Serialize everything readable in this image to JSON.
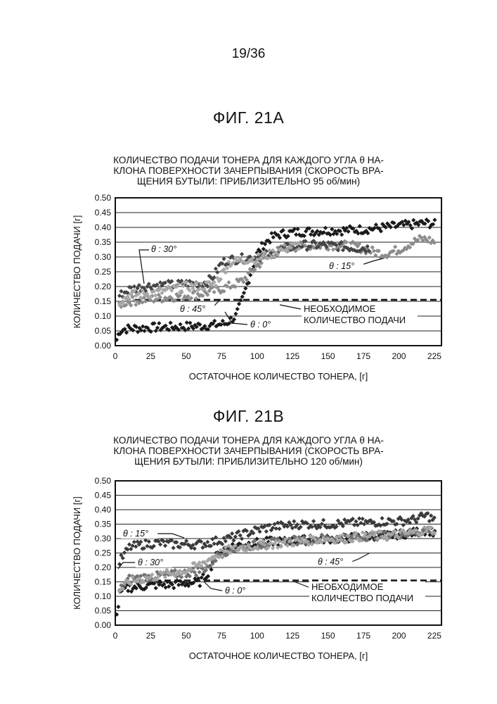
{
  "page": {
    "number": "19/36"
  },
  "figures": [
    {
      "label": "ФИГ. 21А",
      "title_lines": [
        "КОЛИЧЕСТВО ПОДАЧИ ТОНЕРА ДЛЯ КАЖДОГО УГЛА θ НА-",
        "КЛОНА ПОВЕРХНОСТИ ЗАЧЕРПЫВАНИЯ (СКОРОСТЬ ВРА-",
        "ЩЕНИЯ БУТЫЛИ: ПРИБЛИЗИТЕЛЬНО 95 об/мин)"
      ],
      "annotations": [
        "θ : 30°",
        "θ : 45°",
        "θ : 0°",
        "θ : 15°",
        "НЕОБХОДИМОЕ",
        "КОЛИЧЕСТВО ПОДАЧИ"
      ]
    },
    {
      "label": "ФИГ. 21В",
      "title_lines": [
        "КОЛИЧЕСТВО ПОДАЧИ ТОНЕРА ДЛЯ КАЖДОГО УГЛА θ НА-",
        "КЛОНА ПОВЕРХНОСТИ ЗАЧЕРПЫВАНИЯ (СКОРОСТЬ ВРА-",
        "ЩЕНИЯ БУТЫЛИ: ПРИБЛИЗИТЕЛЬНО 120 об/мин)"
      ],
      "annotations": [
        "θ : 15°",
        "θ : 30°",
        "θ : 0°",
        "θ : 45°",
        "НЕОБХОДИМОЕ",
        "КОЛИЧЕСТВО ПОДАЧИ"
      ]
    }
  ],
  "chart_data": [
    {
      "type": "scatter",
      "title": "КОЛИЧЕСТВО ПОДАЧИ ТОНЕРА ДЛЯ КАЖДОГО УГЛА θ НАКЛОНА ПОВЕРХНОСТИ ЗАЧЕРПЫВАНИЯ (СКОРОСТЬ ВРАЩЕНИЯ БУТЫЛИ: ПРИБЛИЗИТЕЛЬНО 95 об/мин)",
      "xlabel": "ОСТАТОЧНОЕ КОЛИЧЕСТВО ТОНЕРА, [г]",
      "ylabel": "КОЛИЧЕСТВО ПОДАЧИ [г]",
      "xlim": [
        0,
        230
      ],
      "ylim": [
        0,
        0.5
      ],
      "xticks": [
        "0",
        "25",
        "50",
        "75",
        "100",
        "125",
        "150",
        "175",
        "200",
        "225"
      ],
      "yticks": [
        "0.00",
        "0.05",
        "0.10",
        "0.15",
        "0.20",
        "0.25",
        "0.30",
        "0.35",
        "0.40",
        "0.45",
        "0.50"
      ],
      "grid": true,
      "required_line": {
        "label": "НЕОБХОДИМОЕ КОЛИЧЕСТВО ПОДАЧИ",
        "y": 0.155
      },
      "series": [
        {
          "name": "θ : 0°",
          "color": "#1a1a1a",
          "x": [
            1,
            3,
            5,
            10,
            20,
            30,
            40,
            50,
            60,
            70,
            78,
            85,
            90,
            95,
            100,
            105,
            110,
            115,
            120,
            130,
            140,
            150,
            160,
            170,
            180,
            190,
            200,
            210,
            220,
            226
          ],
          "y": [
            0.02,
            0.05,
            0.055,
            0.058,
            0.06,
            0.062,
            0.063,
            0.065,
            0.067,
            0.07,
            0.075,
            0.1,
            0.16,
            0.24,
            0.31,
            0.345,
            0.365,
            0.375,
            0.38,
            0.385,
            0.387,
            0.39,
            0.39,
            0.392,
            0.395,
            0.4,
            0.405,
            0.41,
            0.415,
            0.41
          ]
        },
        {
          "name": "θ : 15°",
          "color": "#8c8c8c",
          "x": [
            3,
            10,
            20,
            30,
            40,
            50,
            60,
            70,
            80,
            90,
            100,
            110,
            120,
            130,
            140,
            150,
            160,
            170,
            180,
            190,
            200,
            210,
            215,
            220,
            225
          ],
          "y": [
            0.14,
            0.15,
            0.155,
            0.16,
            0.165,
            0.17,
            0.175,
            0.185,
            0.2,
            0.22,
            0.27,
            0.31,
            0.33,
            0.335,
            0.338,
            0.34,
            0.34,
            0.335,
            0.32,
            0.31,
            0.325,
            0.35,
            0.36,
            0.36,
            0.35
          ]
        },
        {
          "name": "θ : 30°",
          "color": "#454545",
          "x": [
            3,
            10,
            20,
            30,
            40,
            50,
            60,
            65,
            70,
            75,
            80,
            90,
            100,
            110,
            120,
            130,
            140,
            150,
            160,
            170,
            180
          ],
          "y": [
            0.17,
            0.19,
            0.2,
            0.205,
            0.205,
            0.21,
            0.21,
            0.215,
            0.24,
            0.28,
            0.29,
            0.295,
            0.3,
            0.31,
            0.33,
            0.34,
            0.34,
            0.34,
            0.335,
            0.33,
            0.33
          ]
        },
        {
          "name": "θ : 45°",
          "color": "#a8a8a8",
          "x": [
            3,
            10,
            20,
            30,
            40,
            50,
            60,
            70,
            75,
            80,
            90,
            100,
            110,
            120,
            130
          ],
          "y": [
            0.15,
            0.17,
            0.175,
            0.18,
            0.19,
            0.2,
            0.2,
            0.21,
            0.24,
            0.28,
            0.29,
            0.295,
            0.31,
            0.33,
            0.34
          ]
        }
      ]
    },
    {
      "type": "scatter",
      "title": "КОЛИЧЕСТВО ПОДАЧИ ТОНЕРА ДЛЯ КАЖДОГО УГЛА θ НАКЛОНА ПОВЕРХНОСТИ ЗАЧЕРПЫВАНИЯ (СКОРОСТЬ ВРАЩЕНИЯ БУТЫЛИ: ПРИБЛИЗИТЕЛЬНО 120 об/мин)",
      "xlabel": "ОСТАТОЧНОЕ КОЛИЧЕСТВО ТОНЕРА, [г]",
      "ylabel": "КОЛИЧЕСТВО ПОДАЧИ [г]",
      "xlim": [
        0,
        230
      ],
      "ylim": [
        0,
        0.5
      ],
      "xticks": [
        "0",
        "25",
        "50",
        "75",
        "100",
        "125",
        "150",
        "175",
        "200",
        "225"
      ],
      "yticks": [
        "0.00",
        "0.05",
        "0.10",
        "0.15",
        "0.20",
        "0.25",
        "0.30",
        "0.35",
        "0.40",
        "0.45",
        "0.50"
      ],
      "grid": true,
      "required_line": {
        "label": "НЕОБХОДИМОЕ КОЛИЧЕСТВО ПОДАЧИ",
        "y": 0.155
      },
      "series": [
        {
          "name": "θ : 0°",
          "color": "#1a1a1a",
          "x": [
            1,
            3,
            5,
            10,
            20,
            30,
            40,
            50,
            60,
            65,
            70,
            75,
            80,
            90,
            100,
            110,
            120,
            130,
            140,
            150,
            160,
            170,
            180,
            190,
            200,
            210,
            220,
            226
          ],
          "y": [
            0.03,
            0.1,
            0.12,
            0.13,
            0.135,
            0.14,
            0.14,
            0.145,
            0.15,
            0.18,
            0.23,
            0.26,
            0.27,
            0.28,
            0.285,
            0.29,
            0.29,
            0.295,
            0.295,
            0.3,
            0.3,
            0.305,
            0.31,
            0.31,
            0.315,
            0.32,
            0.33,
            0.32
          ]
        },
        {
          "name": "θ : 15°",
          "color": "#3a3a3a",
          "x": [
            3,
            10,
            20,
            30,
            40,
            50,
            60,
            70,
            80,
            90,
            100,
            110,
            120,
            130,
            140,
            150,
            160,
            170,
            180,
            190,
            200,
            210,
            220,
            226
          ],
          "y": [
            0.22,
            0.27,
            0.28,
            0.285,
            0.28,
            0.28,
            0.28,
            0.29,
            0.3,
            0.315,
            0.33,
            0.34,
            0.345,
            0.35,
            0.35,
            0.35,
            0.352,
            0.355,
            0.355,
            0.36,
            0.36,
            0.365,
            0.38,
            0.36
          ]
        },
        {
          "name": "θ : 30°",
          "color": "#707070",
          "x": [
            3,
            10,
            20,
            30,
            40,
            50,
            60,
            65,
            70,
            75,
            80,
            90,
            100,
            110,
            120,
            130,
            140,
            150,
            160,
            170,
            180,
            190,
            200,
            210,
            220,
            226
          ],
          "y": [
            0.12,
            0.16,
            0.165,
            0.17,
            0.175,
            0.18,
            0.19,
            0.2,
            0.23,
            0.25,
            0.26,
            0.27,
            0.28,
            0.285,
            0.29,
            0.295,
            0.3,
            0.3,
            0.3,
            0.305,
            0.31,
            0.31,
            0.315,
            0.32,
            0.335,
            0.32
          ]
        },
        {
          "name": "θ : 45°",
          "color": "#a5a5a5",
          "x": [
            3,
            10,
            20,
            30,
            40,
            50,
            60,
            70,
            80,
            90,
            100,
            110,
            120,
            130,
            140,
            150,
            160,
            170,
            180,
            190,
            200,
            210,
            220,
            226
          ],
          "y": [
            0.12,
            0.15,
            0.16,
            0.17,
            0.18,
            0.19,
            0.21,
            0.24,
            0.26,
            0.27,
            0.275,
            0.28,
            0.285,
            0.29,
            0.295,
            0.3,
            0.3,
            0.305,
            0.31,
            0.31,
            0.315,
            0.32,
            0.33,
            0.33
          ]
        }
      ]
    }
  ]
}
